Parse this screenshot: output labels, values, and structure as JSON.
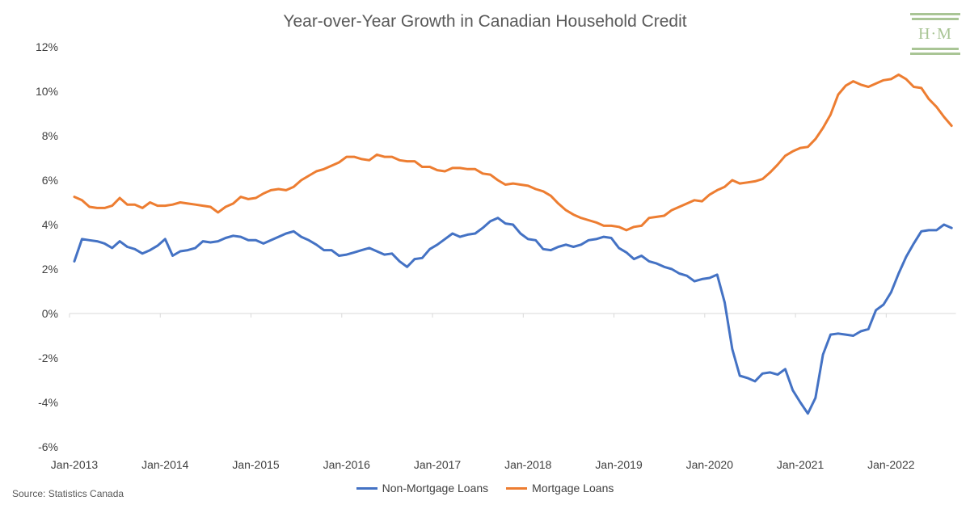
{
  "logo": {
    "text": "H·M",
    "color": "#a9c595"
  },
  "source_note": "Source: Statistics Canada",
  "chart_data": {
    "type": "line",
    "title": "Year-over-Year Growth in Canadian Household Credit",
    "xlabel": "",
    "ylabel": "",
    "ylim": [
      -6,
      12
    ],
    "yticks": [
      -6,
      -4,
      -2,
      0,
      2,
      4,
      6,
      8,
      10,
      12
    ],
    "ytick_labels": [
      "-6%",
      "-4%",
      "-2%",
      "0%",
      "2%",
      "4%",
      "6%",
      "8%",
      "10%",
      "12%"
    ],
    "x_start": "Jan-2013",
    "x_frequency": "monthly",
    "xtick_labels": [
      "Jan-2013",
      "Jan-2014",
      "Jan-2015",
      "Jan-2016",
      "Jan-2017",
      "Jan-2018",
      "Jan-2019",
      "Jan-2020",
      "Jan-2021",
      "Jan-2022"
    ],
    "grid": false,
    "legend_position": "bottom",
    "series": [
      {
        "name": "Non-Mortgage Loans",
        "color": "#4472c4",
        "values": [
          2.35,
          3.35,
          3.3,
          3.25,
          3.15,
          2.95,
          3.25,
          3.0,
          2.9,
          2.7,
          2.85,
          3.05,
          3.35,
          2.6,
          2.8,
          2.85,
          2.95,
          3.25,
          3.2,
          3.25,
          3.4,
          3.5,
          3.45,
          3.3,
          3.3,
          3.15,
          3.3,
          3.45,
          3.6,
          3.7,
          3.45,
          3.3,
          3.1,
          2.85,
          2.85,
          2.6,
          2.65,
          2.75,
          2.85,
          2.95,
          2.8,
          2.65,
          2.7,
          2.35,
          2.1,
          2.45,
          2.5,
          2.9,
          3.1,
          3.35,
          3.6,
          3.45,
          3.55,
          3.6,
          3.85,
          4.15,
          4.3,
          4.05,
          4.0,
          3.6,
          3.35,
          3.3,
          2.9,
          2.85,
          3.0,
          3.1,
          3.0,
          3.1,
          3.3,
          3.35,
          3.45,
          3.4,
          2.95,
          2.75,
          2.45,
          2.6,
          2.35,
          2.25,
          2.1,
          2.0,
          1.8,
          1.7,
          1.45,
          1.55,
          1.6,
          1.75,
          0.5,
          -1.6,
          -2.8,
          -2.9,
          -3.05,
          -2.7,
          -2.65,
          -2.75,
          -2.5,
          -3.45,
          -4.0,
          -4.5,
          -3.8,
          -1.85,
          -0.95,
          -0.9,
          -0.95,
          -1.0,
          -0.8,
          -0.7,
          0.15,
          0.4,
          0.95,
          1.8,
          2.55,
          3.15,
          3.7,
          3.75,
          3.75,
          4.0,
          3.85
        ]
      },
      {
        "name": "Mortgage Loans",
        "color": "#ed7d31",
        "values": [
          5.25,
          5.1,
          4.8,
          4.75,
          4.75,
          4.85,
          5.2,
          4.9,
          4.9,
          4.75,
          5.0,
          4.85,
          4.85,
          4.9,
          5.0,
          4.95,
          4.9,
          4.85,
          4.8,
          4.55,
          4.8,
          4.95,
          5.25,
          5.15,
          5.2,
          5.4,
          5.55,
          5.6,
          5.55,
          5.7,
          6.0,
          6.2,
          6.4,
          6.5,
          6.65,
          6.8,
          7.05,
          7.05,
          6.95,
          6.9,
          7.15,
          7.05,
          7.05,
          6.9,
          6.85,
          6.85,
          6.6,
          6.6,
          6.45,
          6.4,
          6.55,
          6.55,
          6.5,
          6.5,
          6.3,
          6.25,
          6.0,
          5.8,
          5.85,
          5.8,
          5.75,
          5.6,
          5.5,
          5.3,
          4.95,
          4.65,
          4.45,
          4.3,
          4.2,
          4.1,
          3.95,
          3.95,
          3.9,
          3.75,
          3.9,
          3.95,
          4.3,
          4.35,
          4.4,
          4.65,
          4.8,
          4.95,
          5.1,
          5.05,
          5.35,
          5.55,
          5.7,
          6.0,
          5.85,
          5.9,
          5.95,
          6.05,
          6.35,
          6.7,
          7.1,
          7.3,
          7.45,
          7.5,
          7.85,
          8.35,
          8.95,
          9.85,
          10.25,
          10.45,
          10.3,
          10.2,
          10.35,
          10.5,
          10.55,
          10.75,
          10.55,
          10.2,
          10.15,
          9.65,
          9.3,
          8.85,
          8.45
        ]
      }
    ]
  }
}
